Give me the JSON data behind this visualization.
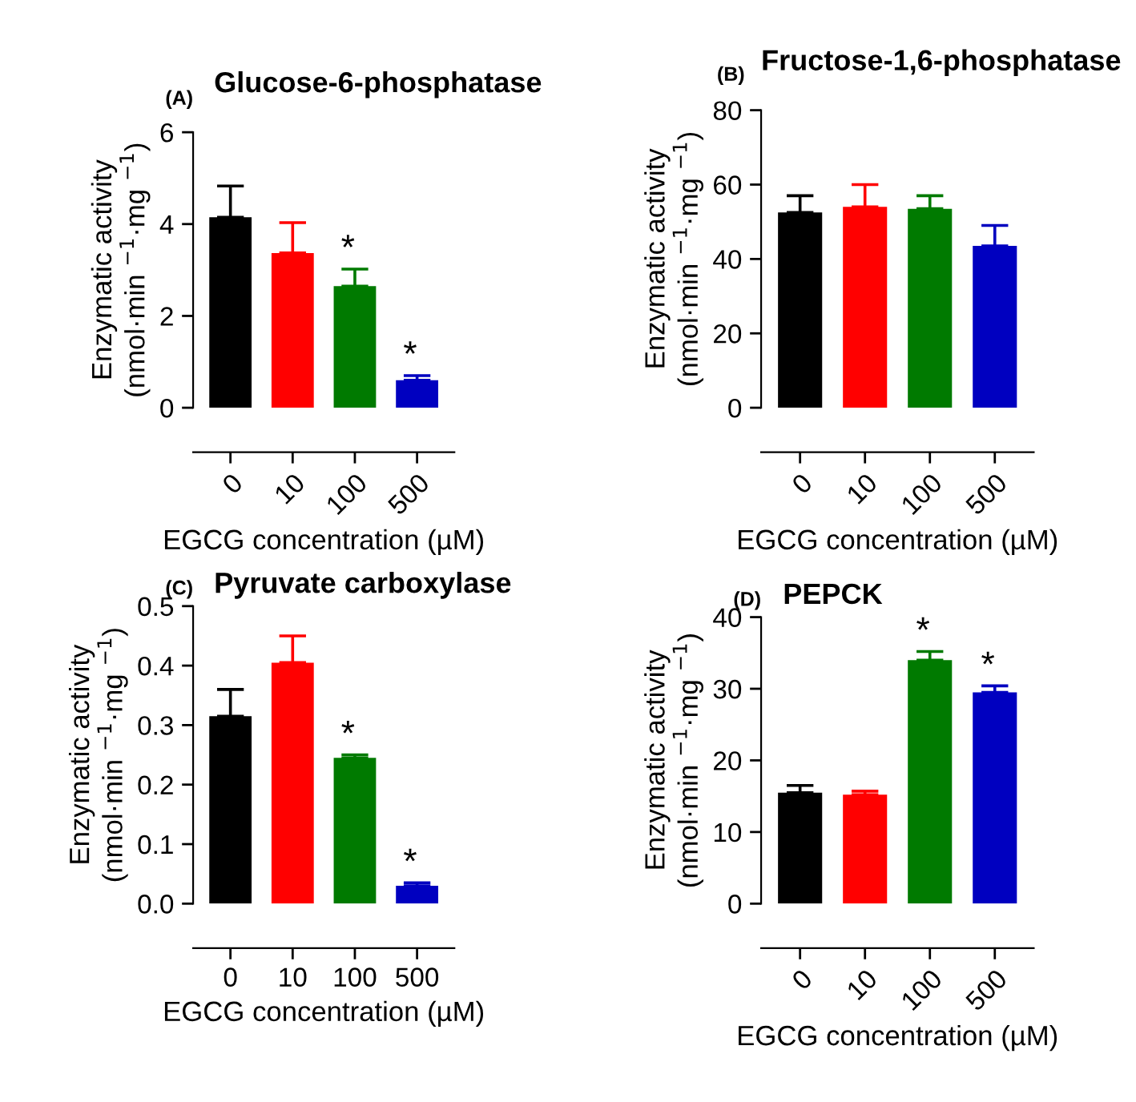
{
  "chart_data": [
    {
      "type": "bar",
      "title": "Glucose-6-phosphatase",
      "xlabel": "EGCG concentration (µM)",
      "ylabel": "Enzymatic activity\n(nmol·min $^{−1}$·mg $^{−1}$)",
      "categories": [
        "0",
        "10",
        "100",
        "500"
      ],
      "colors": [
        "#000000",
        "#ff0000",
        "#007a00",
        "#0000c0"
      ],
      "values": [
        4.15,
        3.37,
        2.65,
        0.6
      ],
      "errors": [
        [
          4.15,
          4.83
        ],
        [
          3.37,
          4.03
        ],
        [
          2.65,
          3.02
        ],
        [
          0.6,
          0.7
        ]
      ],
      "ylim": [
        0,
        6
      ],
      "yticks": [
        0,
        2,
        4,
        6
      ],
      "grid": false,
      "legend": false,
      "annotations": [
        "(A)",
        {
          "text": "*",
          "x": "100",
          "y": 3.02
        },
        {
          "text": "*",
          "x": "500",
          "y": 0.7
        }
      ]
    },
    {
      "type": "bar",
      "title": "Fructose-1,6-phosphatase",
      "xlabel": "EGCG concentration (µM)",
      "ylabel": "Enzymatic activity\n(nmol·min $^{−1}$·mg $^{−1}$)",
      "categories": [
        "0",
        "10",
        "100",
        "500"
      ],
      "colors": [
        "#000000",
        "#ff0000",
        "#007a00",
        "#0000c0"
      ],
      "values": [
        52.5,
        54,
        53.5,
        43.5
      ],
      "errors": [
        [
          52.5,
          57
        ],
        [
          54,
          60
        ],
        [
          53.5,
          57
        ],
        [
          43.5,
          49
        ]
      ],
      "ylim": [
        0,
        80
      ],
      "yticks": [
        0,
        20,
        40,
        60,
        80
      ],
      "grid": false,
      "legend": false,
      "annotations": [
        "(B)"
      ]
    },
    {
      "type": "bar",
      "title": "Pyruvate carboxylase",
      "xlabel": "EGCG concentration (µM)",
      "ylabel": "Enzymatic activity\n(nmol·min $^{−1}$·mg $^{−1}$)",
      "categories": [
        "0",
        "10",
        "100",
        "500"
      ],
      "colors": [
        "#000000",
        "#ff0000",
        "#007a00",
        "#0000c0"
      ],
      "values": [
        0.315,
        0.405,
        0.245,
        0.03
      ],
      "errors": [
        [
          0.315,
          0.36
        ],
        [
          0.405,
          0.45
        ],
        [
          0.245,
          0.25
        ],
        [
          0.03,
          0.035
        ]
      ],
      "ylim": [
        0,
        0.5
      ],
      "yticks": [
        {
          "value": 0,
          "label": "0.0"
        },
        0.1,
        0.2,
        0.3,
        0.4,
        0.5
      ],
      "grid": false,
      "legend": false,
      "annotations": [
        "(C)",
        {
          "text": "*",
          "x": "100",
          "y": 0.25
        },
        {
          "text": "*",
          "x": "500",
          "y": 0.035
        }
      ]
    },
    {
      "type": "bar",
      "title": "PEPCK",
      "xlabel": "EGCG concentration (µM)",
      "ylabel": "Enzymatic activity\n(nmol·min $^{−1}$·mg $^{−1}$)",
      "categories": [
        "0",
        "10",
        "100",
        "500"
      ],
      "colors": [
        "#000000",
        "#ff0000",
        "#007a00",
        "#0000c0"
      ],
      "values": [
        15.5,
        15.2,
        34,
        29.5
      ],
      "errors": [
        [
          15.5,
          16.5
        ],
        [
          15.2,
          15.7
        ],
        [
          34,
          35.2
        ],
        [
          29.5,
          30.4
        ]
      ],
      "ylim": [
        0,
        40
      ],
      "yticks": [
        0,
        10,
        20,
        30,
        40
      ],
      "grid": false,
      "legend": false,
      "annotations": [
        "(D)",
        {
          "text": "*",
          "x": "100",
          "y": 35.2
        },
        {
          "text": "*",
          "x": "500",
          "y": 30.4
        }
      ]
    }
  ]
}
